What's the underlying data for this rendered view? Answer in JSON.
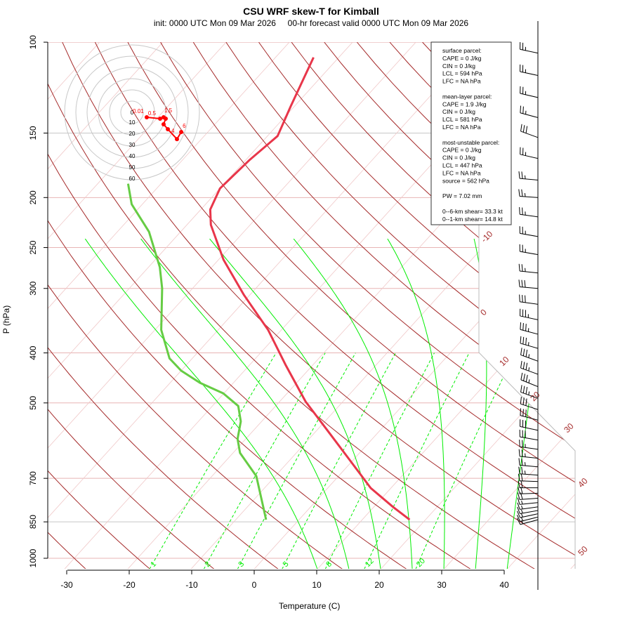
{
  "chart_data": {
    "type": "line",
    "title": "CSU WRF skew-T for Kimball",
    "subtitle": "init: 0000 UTC Mon 09 Mar 2026     00-hr forecast valid 0000 UTC Mon 09 Mar 2026",
    "xlabel": "Temperature (C)",
    "ylabel": "P (hPa)",
    "x_ticks": [
      "-30",
      "-20",
      "-10",
      "0",
      "10",
      "20",
      "30",
      "40"
    ],
    "y_ticks": [
      "100",
      "150",
      "200",
      "250",
      "300",
      "400",
      "500",
      "700",
      "850",
      "1000"
    ],
    "xlim": [
      -33,
      45
    ],
    "ylim": [
      1050,
      100
    ],
    "y_scale": "log",
    "skewed": true,
    "colors": {
      "temperature": "#e8364a",
      "dewpoint": "#66cc44",
      "dry_adiabat": "#a52a2a",
      "moist_adiabat": "#00ee00",
      "mixing_ratio": "#00ee00",
      "isotherm": "#f0c8c8",
      "isobar": "#e8b4b4",
      "hodograph": "#ff0000"
    },
    "temperature": [
      {
        "p": 842,
        "t": 17.5
      },
      {
        "p": 796,
        "t": 13.1
      },
      {
        "p": 731,
        "t": 6.8
      },
      {
        "p": 651,
        "t": 0.0
      },
      {
        "p": 573,
        "t": -7.5
      },
      {
        "p": 497,
        "t": -15.9
      },
      {
        "p": 423,
        "t": -24.2
      },
      {
        "p": 361,
        "t": -32.1
      },
      {
        "p": 309,
        "t": -40.9
      },
      {
        "p": 264,
        "t": -49.2
      },
      {
        "p": 226,
        "t": -56.2
      },
      {
        "p": 211,
        "t": -58.5
      },
      {
        "p": 192,
        "t": -60.0
      },
      {
        "p": 169,
        "t": -59.4
      },
      {
        "p": 152,
        "t": -58.4
      },
      {
        "p": 133,
        "t": -60.6
      },
      {
        "p": 107,
        "t": -64.0
      }
    ],
    "dewpoint": [
      {
        "p": 842,
        "t": -5.2
      },
      {
        "p": 791,
        "t": -7.7
      },
      {
        "p": 693,
        "t": -13.0
      },
      {
        "p": 625,
        "t": -18.9
      },
      {
        "p": 587,
        "t": -21.3
      },
      {
        "p": 543,
        "t": -23.3
      },
      {
        "p": 507,
        "t": -25.9
      },
      {
        "p": 479,
        "t": -30.1
      },
      {
        "p": 457,
        "t": -35.3
      },
      {
        "p": 433,
        "t": -40.0
      },
      {
        "p": 410,
        "t": -43.6
      },
      {
        "p": 361,
        "t": -49.0
      },
      {
        "p": 300,
        "t": -54.8
      },
      {
        "p": 273,
        "t": -58.2
      },
      {
        "p": 233,
        "t": -65.0
      },
      {
        "p": 206,
        "t": -71.7
      },
      {
        "p": 188,
        "t": -75.2
      }
    ],
    "dry_adiabat_labels": [
      "-10",
      "0",
      "10",
      "20",
      "30",
      "40",
      "50"
    ],
    "dry_adiabats_C": [
      -30,
      -20,
      -10,
      0,
      10,
      20,
      30,
      40,
      50,
      60,
      70,
      80,
      90,
      100,
      110,
      120,
      130,
      140,
      150,
      160,
      170
    ],
    "moist_adiabats_start_C": [
      10,
      15,
      20,
      25,
      30,
      35,
      40
    ],
    "mixing_ratio_labels": [
      "1",
      "2",
      "3",
      "5",
      "8",
      "12",
      "20"
    ],
    "mixing_ratios_gkg": [
      1,
      2,
      3,
      5,
      8,
      12,
      20
    ],
    "wind_barbs": [
      {
        "p": 105,
        "dir": 282,
        "spd": 25
      },
      {
        "p": 116,
        "dir": 282,
        "spd": 25
      },
      {
        "p": 128,
        "dir": 283,
        "spd": 25
      },
      {
        "p": 140,
        "dir": 285,
        "spd": 25
      },
      {
        "p": 153,
        "dir": 290,
        "spd": 30
      },
      {
        "p": 168,
        "dir": 283,
        "spd": 25
      },
      {
        "p": 185,
        "dir": 275,
        "spd": 25
      },
      {
        "p": 200,
        "dir": 274,
        "spd": 25
      },
      {
        "p": 218,
        "dir": 278,
        "spd": 25
      },
      {
        "p": 238,
        "dir": 280,
        "spd": 25
      },
      {
        "p": 258,
        "dir": 280,
        "spd": 25
      },
      {
        "p": 280,
        "dir": 276,
        "spd": 25
      },
      {
        "p": 300,
        "dir": 275,
        "spd": 30
      },
      {
        "p": 322,
        "dir": 278,
        "spd": 30
      },
      {
        "p": 345,
        "dir": 282,
        "spd": 35
      },
      {
        "p": 368,
        "dir": 285,
        "spd": 35
      },
      {
        "p": 392,
        "dir": 286,
        "spd": 35
      },
      {
        "p": 415,
        "dir": 290,
        "spd": 35
      },
      {
        "p": 440,
        "dir": 290,
        "spd": 35
      },
      {
        "p": 465,
        "dir": 292,
        "spd": 35
      },
      {
        "p": 490,
        "dir": 290,
        "spd": 35
      },
      {
        "p": 515,
        "dir": 288,
        "spd": 30
      },
      {
        "p": 540,
        "dir": 285,
        "spd": 30
      },
      {
        "p": 565,
        "dir": 282,
        "spd": 30
      },
      {
        "p": 590,
        "dir": 280,
        "spd": 30
      },
      {
        "p": 615,
        "dir": 278,
        "spd": 25
      },
      {
        "p": 640,
        "dir": 276,
        "spd": 25
      },
      {
        "p": 665,
        "dir": 275,
        "spd": 25
      },
      {
        "p": 690,
        "dir": 274,
        "spd": 25
      },
      {
        "p": 710,
        "dir": 272,
        "spd": 20
      },
      {
        "p": 730,
        "dir": 270,
        "spd": 20
      },
      {
        "p": 748,
        "dir": 268,
        "spd": 20
      },
      {
        "p": 765,
        "dir": 266,
        "spd": 20
      },
      {
        "p": 780,
        "dir": 264,
        "spd": 15
      },
      {
        "p": 795,
        "dir": 262,
        "spd": 15
      },
      {
        "p": 808,
        "dir": 260,
        "spd": 15
      },
      {
        "p": 820,
        "dir": 258,
        "spd": 15
      },
      {
        "p": 832,
        "dir": 256,
        "spd": 15
      },
      {
        "p": 842,
        "dir": 255,
        "spd": 15
      }
    ],
    "hodograph": {
      "ring_labels": [
        "0",
        "10",
        "20",
        "30",
        "40",
        "50",
        "60"
      ],
      "points": [
        {
          "label": "0.01",
          "u": 13.1,
          "v": -4.4
        },
        {
          "label": "0.5",
          "u": 25.0,
          "v": -5.6
        },
        {
          "label": "1.5",
          "u": 28.1,
          "v": -4.4
        },
        {
          "label": "",
          "u": 30.0,
          "v": -5.6
        },
        {
          "label": "",
          "u": 28.1,
          "v": -10.6
        },
        {
          "label": "4",
          "u": 31.9,
          "v": -15.0
        },
        {
          "label": "",
          "u": 40.0,
          "v": -23.8
        },
        {
          "label": "6",
          "u": 43.8,
          "v": -17.5
        }
      ]
    }
  },
  "info_box": {
    "lines": [
      "surface parcel:",
      "CAPE = 0 J/kg",
      "CIN = 0 J/kg",
      "LCL = 594 hPa",
      "LFC = NA hPa",
      "",
      "mean-layer parcel:",
      "CAPE = 1.9 J/kg",
      "CIN = 0 J/kg",
      "LCL = 581 hPa",
      "LFC = NA hPa",
      "",
      "most-unstable parcel:",
      "CAPE = 0 J/kg",
      "CIN = 0 J/kg",
      "LCL = 447 hPa",
      "LFC = NA hPa",
      "source = 562 hPa",
      "",
      "PW =  7.02 mm",
      "",
      "0--6-km shear= 33.3 kt",
      "0--1-km shear= 14.8 kt"
    ]
  }
}
